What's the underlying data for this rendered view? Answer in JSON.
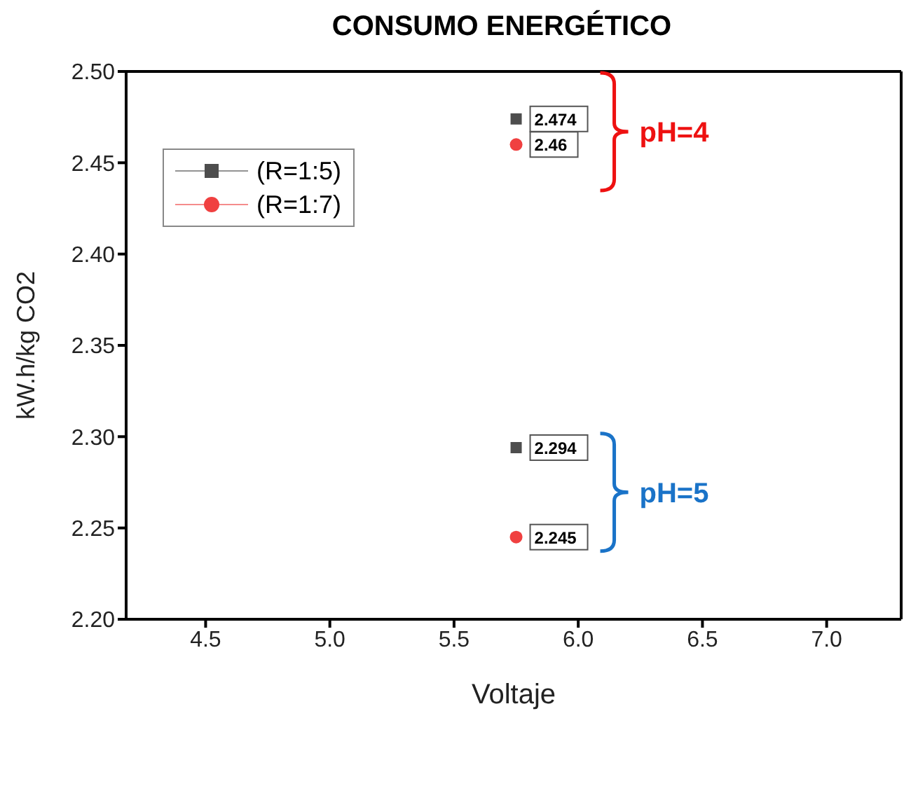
{
  "chart_data": {
    "type": "scatter",
    "title": "CONSUMO ENERGÉTICO",
    "xlabel": "Voltaje",
    "ylabel": "kW.h/kg CO2",
    "x": [
      5.75,
      5.75
    ],
    "series": [
      {
        "name": "(R=1:5)",
        "color": "#4d4d4d",
        "marker": "square",
        "values": [
          2.474,
          2.294
        ]
      },
      {
        "name": "(R=1:7)",
        "color": "#f04040",
        "marker": "circle",
        "values": [
          2.46,
          2.245
        ]
      }
    ],
    "xlim": [
      4.18,
      7.3
    ],
    "xticks": [
      4.5,
      {
        "value": 5,
        "label": "5.0"
      },
      5.5,
      {
        "value": 6,
        "label": "6.0"
      },
      6.5,
      {
        "value": 7,
        "label": "7.0"
      }
    ],
    "ylim": [
      2.2,
      2.5
    ],
    "yticks": [
      {
        "value": 2.2,
        "label": "2.20"
      },
      2.25,
      {
        "value": 2.3,
        "label": "2.30"
      },
      2.35,
      {
        "value": 2.4,
        "label": "2.40"
      },
      2.45,
      {
        "value": 2.5,
        "label": "2.50"
      }
    ],
    "data_labels": true,
    "legend": "top left",
    "grid": false,
    "annotations": [
      "pH=4",
      "pH=5"
    ]
  }
}
